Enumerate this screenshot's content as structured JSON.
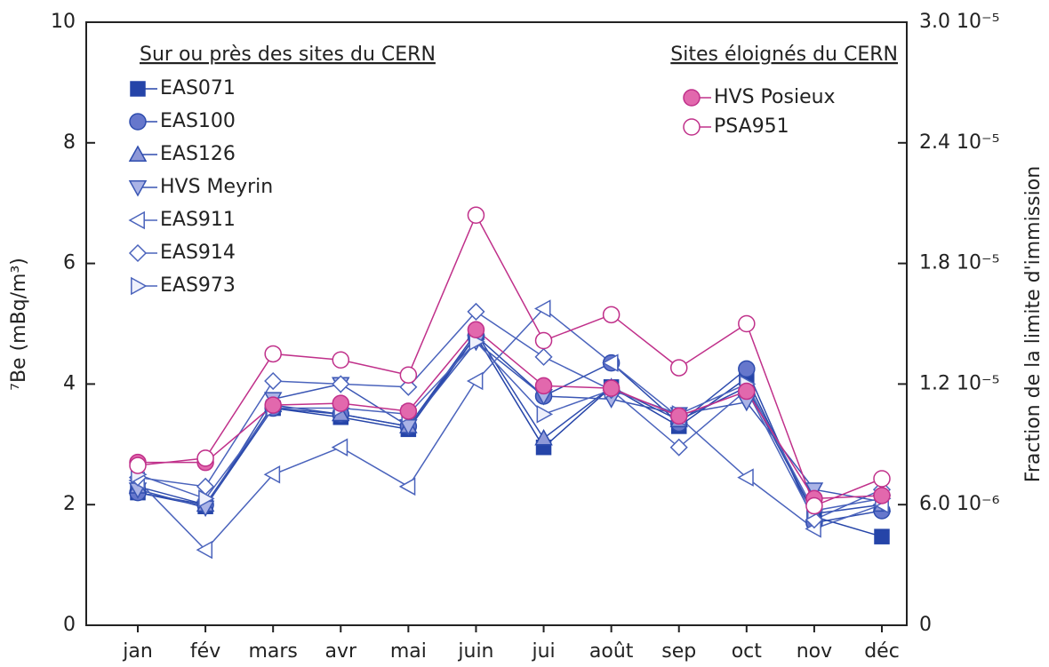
{
  "chart_data": {
    "type": "line",
    "y_label": "⁷Be (mBq/m³)",
    "y2_label": "Fraction de la limite d'immission",
    "legend_titles": [
      "Sur ou près des sites du CERN",
      "Sites éloignés du CERN"
    ],
    "categories": [
      "jan",
      "fév",
      "mars",
      "avr",
      "mai",
      "juin",
      "jui",
      "août",
      "sep",
      "oct",
      "nov",
      "déc"
    ],
    "ylim": [
      0,
      10
    ],
    "yticks": [
      0,
      2,
      4,
      6,
      8,
      10
    ],
    "y2lim": [
      0,
      3e-05
    ],
    "y2ticks": [
      0,
      {
        "value": 6e-06,
        "label": "6.0 10⁻⁶"
      },
      {
        "value": 1.2e-05,
        "label": "1.2 10⁻⁵"
      },
      {
        "value": 1.8e-05,
        "label": "1.8 10⁻⁵"
      },
      {
        "value": 2.4e-05,
        "label": "2.4 10⁻⁵"
      },
      {
        "value": 3e-05,
        "label": "3.0 10⁻⁵"
      }
    ],
    "series": [
      {
        "name": "EAS071",
        "group": 0,
        "marker": "square",
        "color": "#2544a8",
        "marker_fill": "#2544a8",
        "values": [
          2.2,
          1.97,
          3.6,
          3.45,
          3.25,
          4.8,
          2.95,
          3.95,
          3.3,
          4.1,
          1.8,
          1.47
        ]
      },
      {
        "name": "EAS100",
        "group": 0,
        "marker": "circle",
        "color": "#2e4cae",
        "marker_fill": "#6677cc",
        "values": [
          2.2,
          2.0,
          3.6,
          3.5,
          3.3,
          4.8,
          3.8,
          4.35,
          3.35,
          4.25,
          1.7,
          1.9
        ]
      },
      {
        "name": "EAS126",
        "group": 0,
        "marker": "triangle-up",
        "color": "#2e4cae",
        "marker_fill": "#8e98d8",
        "values": [
          2.3,
          2.0,
          3.65,
          3.5,
          3.3,
          4.85,
          3.1,
          3.95,
          3.4,
          3.95,
          1.85,
          2.0
        ]
      },
      {
        "name": "HVS Meyrin",
        "group": 0,
        "marker": "triangle-down",
        "color": "#3a56b4",
        "marker_fill": "#aab3e6",
        "values": [
          2.25,
          1.95,
          3.75,
          4.0,
          3.3,
          4.7,
          3.8,
          3.75,
          3.5,
          3.7,
          2.25,
          2.05
        ]
      },
      {
        "name": "EAS911",
        "group": 0,
        "marker": "triangle-left",
        "color": "#4a63bc",
        "marker_fill": "#ffffff",
        "values": [
          2.4,
          1.25,
          2.5,
          2.95,
          2.3,
          4.05,
          5.25,
          4.35,
          3.45,
          2.45,
          1.6,
          2.0
        ]
      },
      {
        "name": "EAS914",
        "group": 0,
        "marker": "diamond",
        "color": "#4a63bc",
        "marker_fill": "#ffffff",
        "values": [
          2.45,
          2.3,
          4.05,
          4.0,
          3.95,
          5.2,
          4.45,
          3.9,
          2.95,
          3.9,
          1.75,
          2.25
        ]
      },
      {
        "name": "EAS973",
        "group": 0,
        "marker": "triangle-right",
        "color": "#4a63bc",
        "marker_fill": "#eef0fb",
        "values": [
          2.5,
          2.1,
          3.6,
          3.6,
          3.5,
          4.7,
          3.5,
          3.9,
          3.5,
          4.0,
          1.9,
          2.1
        ]
      },
      {
        "name": "HVS Posieux",
        "group": 1,
        "marker": "circle",
        "color": "#c0308a",
        "marker_fill": "#e268ad",
        "values": [
          2.7,
          2.7,
          3.65,
          3.68,
          3.55,
          4.9,
          3.97,
          3.93,
          3.47,
          3.88,
          2.1,
          2.15
        ]
      },
      {
        "name": "PSA951",
        "group": 1,
        "marker": "circle",
        "color": "#c0308a",
        "marker_fill": "#ffffff",
        "values": [
          2.65,
          2.77,
          4.5,
          4.4,
          4.15,
          6.8,
          4.72,
          5.15,
          4.27,
          5.0,
          1.98,
          2.43
        ]
      }
    ]
  }
}
